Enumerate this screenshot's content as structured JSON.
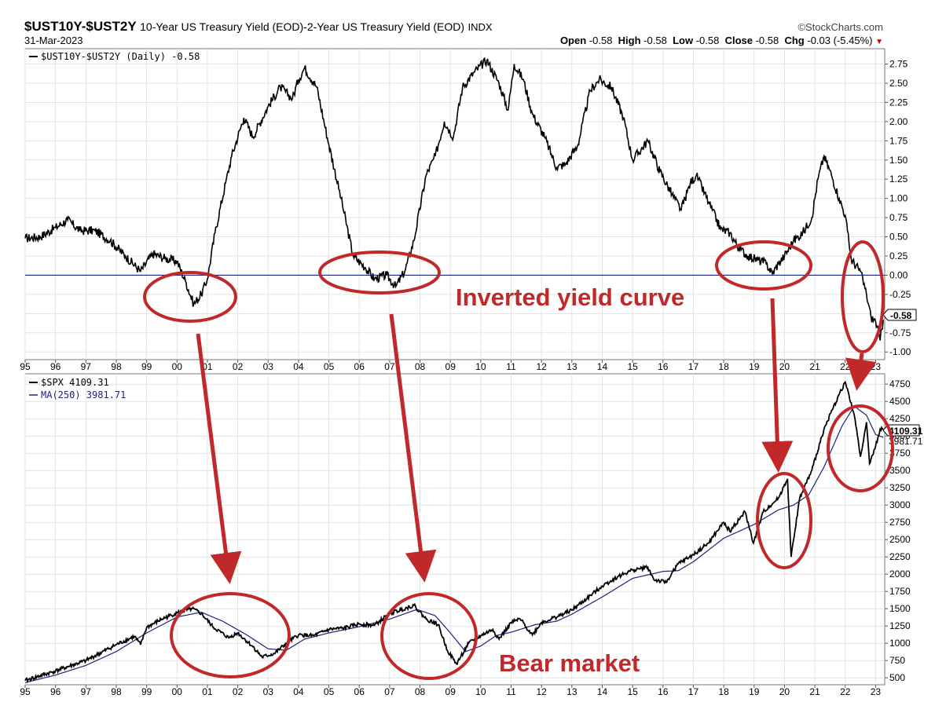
{
  "header": {
    "symbol": "$UST10Y-$UST2Y",
    "description": "10-Year US Treasury Yield (EOD)-2-Year US Treasury Yield (EOD)",
    "exchange": "INDX",
    "date": "31-Mar-2023",
    "source": "©StockCharts.com",
    "open_label": "Open",
    "open_value": "-0.58",
    "high_label": "High",
    "high_value": "-0.58",
    "low_label": "Low",
    "low_value": "-0.58",
    "close_label": "Close",
    "close_value": "-0.58",
    "chg_label": "Chg",
    "chg_value": "-0.03 (-5.45%)"
  },
  "annotations": {
    "inverted": "Inverted yield curve",
    "bear": "Bear market",
    "color": "#c0282a"
  },
  "chart_data": [
    {
      "type": "line",
      "title": "$UST10Y-$UST2Y",
      "legend": [
        "$UST10Y-$UST2Y (Daily) -0.58"
      ],
      "last_value_label": "-0.58",
      "x_ticks": [
        "95",
        "96",
        "97",
        "98",
        "99",
        "00",
        "01",
        "02",
        "03",
        "04",
        "05",
        "06",
        "07",
        "08",
        "09",
        "10",
        "11",
        "12",
        "13",
        "14",
        "15",
        "16",
        "17",
        "18",
        "19",
        "20",
        "21",
        "22",
        "23"
      ],
      "y_ticks": [
        "2.75",
        "2.50",
        "2.25",
        "2.00",
        "1.75",
        "1.50",
        "1.25",
        "1.00",
        "0.75",
        "0.50",
        "0.25",
        "0.00",
        "-0.25",
        "-0.50",
        "-0.75",
        "-1.00"
      ],
      "ylim": [
        -1.1,
        2.95
      ],
      "zero_line": true,
      "grid": true,
      "series": [
        {
          "name": "$UST10Y-$UST2Y (Daily)",
          "points": [
            [
              1995.0,
              0.48
            ],
            [
              1995.5,
              0.5
            ],
            [
              1996.0,
              0.62
            ],
            [
              1996.4,
              0.72
            ],
            [
              1996.8,
              0.58
            ],
            [
              1997.3,
              0.58
            ],
            [
              1997.8,
              0.45
            ],
            [
              1998.3,
              0.25
            ],
            [
              1998.8,
              0.05
            ],
            [
              1999.2,
              0.28
            ],
            [
              1999.6,
              0.22
            ],
            [
              2000.0,
              0.18
            ],
            [
              2000.3,
              -0.1
            ],
            [
              2000.55,
              -0.38
            ],
            [
              2000.8,
              -0.25
            ],
            [
              2001.0,
              -0.05
            ],
            [
              2001.25,
              0.55
            ],
            [
              2001.6,
              1.2
            ],
            [
              2001.8,
              1.55
            ],
            [
              2002.2,
              2.05
            ],
            [
              2002.5,
              1.8
            ],
            [
              2003.0,
              2.2
            ],
            [
              2003.4,
              2.45
            ],
            [
              2003.8,
              2.3
            ],
            [
              2004.0,
              2.55
            ],
            [
              2004.2,
              2.7
            ],
            [
              2004.6,
              2.45
            ],
            [
              2005.0,
              1.7
            ],
            [
              2005.4,
              1.0
            ],
            [
              2005.8,
              0.25
            ],
            [
              2006.2,
              0.1
            ],
            [
              2006.5,
              -0.05
            ],
            [
              2006.9,
              0.0
            ],
            [
              2007.2,
              -0.15
            ],
            [
              2007.5,
              0.05
            ],
            [
              2007.8,
              0.45
            ],
            [
              2008.2,
              1.3
            ],
            [
              2008.5,
              1.55
            ],
            [
              2008.8,
              2.0
            ],
            [
              2009.1,
              1.8
            ],
            [
              2009.4,
              2.45
            ],
            [
              2009.8,
              2.65
            ],
            [
              2010.2,
              2.8
            ],
            [
              2010.6,
              2.5
            ],
            [
              2010.9,
              2.15
            ],
            [
              2011.1,
              2.75
            ],
            [
              2011.4,
              2.55
            ],
            [
              2011.7,
              2.1
            ],
            [
              2012.1,
              1.8
            ],
            [
              2012.5,
              1.4
            ],
            [
              2012.8,
              1.45
            ],
            [
              2013.2,
              1.7
            ],
            [
              2013.6,
              2.4
            ],
            [
              2013.9,
              2.55
            ],
            [
              2014.3,
              2.45
            ],
            [
              2014.7,
              2.05
            ],
            [
              2015.0,
              1.5
            ],
            [
              2015.5,
              1.75
            ],
            [
              2015.9,
              1.35
            ],
            [
              2016.3,
              1.05
            ],
            [
              2016.6,
              0.85
            ],
            [
              2016.9,
              1.2
            ],
            [
              2017.1,
              1.3
            ],
            [
              2017.5,
              0.95
            ],
            [
              2017.9,
              0.6
            ],
            [
              2018.2,
              0.55
            ],
            [
              2018.5,
              0.35
            ],
            [
              2018.8,
              0.25
            ],
            [
              2019.1,
              0.2
            ],
            [
              2019.4,
              0.15
            ],
            [
              2019.6,
              0.02
            ],
            [
              2019.8,
              0.15
            ],
            [
              2020.0,
              0.25
            ],
            [
              2020.3,
              0.45
            ],
            [
              2020.6,
              0.55
            ],
            [
              2020.9,
              0.75
            ],
            [
              2021.1,
              1.25
            ],
            [
              2021.3,
              1.55
            ],
            [
              2021.55,
              1.3
            ],
            [
              2021.8,
              1.0
            ],
            [
              2022.0,
              0.78
            ],
            [
              2022.2,
              0.2
            ],
            [
              2022.5,
              0.05
            ],
            [
              2022.7,
              -0.25
            ],
            [
              2022.85,
              -0.55
            ],
            [
              2023.0,
              -0.6
            ],
            [
              2023.15,
              -0.85
            ],
            [
              2023.25,
              -0.58
            ]
          ]
        }
      ]
    },
    {
      "type": "line",
      "title": "$SPX",
      "legend": [
        "$SPX 4109.31",
        "MA(250) 3981.71"
      ],
      "last_value_labels": [
        "4109.31",
        "3981.71"
      ],
      "x_ticks": [
        "95",
        "96",
        "97",
        "98",
        "99",
        "00",
        "01",
        "02",
        "03",
        "04",
        "05",
        "06",
        "07",
        "08",
        "09",
        "10",
        "11",
        "12",
        "13",
        "14",
        "15",
        "16",
        "17",
        "18",
        "19",
        "20",
        "21",
        "22",
        "23"
      ],
      "y_ticks": [
        "4750",
        "4500",
        "4250",
        "4000",
        "3750",
        "3500",
        "3250",
        "3000",
        "2750",
        "2500",
        "2250",
        "2000",
        "1750",
        "1500",
        "1250",
        "1000",
        "750",
        "500"
      ],
      "ylim": [
        400,
        4900
      ],
      "grid": true,
      "series": [
        {
          "name": "$SPX",
          "points": [
            [
              1995.0,
              460
            ],
            [
              1996.0,
              600
            ],
            [
              1997.0,
              750
            ],
            [
              1998.0,
              980
            ],
            [
              1998.6,
              1100
            ],
            [
              1998.8,
              980
            ],
            [
              1999.0,
              1230
            ],
            [
              1999.5,
              1350
            ],
            [
              2000.0,
              1440
            ],
            [
              2000.5,
              1500
            ],
            [
              2000.8,
              1430
            ],
            [
              2001.2,
              1230
            ],
            [
              2001.7,
              1080
            ],
            [
              2002.0,
              1150
            ],
            [
              2002.5,
              950
            ],
            [
              2002.8,
              800
            ],
            [
              2003.2,
              850
            ],
            [
              2003.6,
              1000
            ],
            [
              2004.0,
              1120
            ],
            [
              2004.5,
              1110
            ],
            [
              2005.0,
              1200
            ],
            [
              2005.5,
              1220
            ],
            [
              2006.0,
              1280
            ],
            [
              2006.5,
              1260
            ],
            [
              2007.0,
              1430
            ],
            [
              2007.8,
              1550
            ],
            [
              2008.2,
              1350
            ],
            [
              2008.6,
              1270
            ],
            [
              2008.9,
              900
            ],
            [
              2009.2,
              700
            ],
            [
              2009.6,
              1000
            ],
            [
              2010.0,
              1110
            ],
            [
              2010.4,
              1200
            ],
            [
              2010.6,
              1060
            ],
            [
              2011.0,
              1300
            ],
            [
              2011.3,
              1350
            ],
            [
              2011.7,
              1120
            ],
            [
              2012.0,
              1300
            ],
            [
              2012.6,
              1400
            ],
            [
              2013.0,
              1480
            ],
            [
              2013.5,
              1650
            ],
            [
              2014.0,
              1830
            ],
            [
              2014.5,
              1960
            ],
            [
              2015.0,
              2060
            ],
            [
              2015.5,
              2100
            ],
            [
              2015.7,
              1920
            ],
            [
              2016.1,
              1880
            ],
            [
              2016.5,
              2150
            ],
            [
              2017.0,
              2280
            ],
            [
              2017.5,
              2450
            ],
            [
              2018.0,
              2750
            ],
            [
              2018.2,
              2620
            ],
            [
              2018.7,
              2900
            ],
            [
              2018.98,
              2450
            ],
            [
              2019.3,
              2900
            ],
            [
              2019.8,
              3100
            ],
            [
              2020.1,
              3380
            ],
            [
              2020.22,
              2250
            ],
            [
              2020.5,
              3100
            ],
            [
              2020.9,
              3500
            ],
            [
              2021.3,
              4100
            ],
            [
              2021.8,
              4600
            ],
            [
              2022.0,
              4780
            ],
            [
              2022.3,
              4300
            ],
            [
              2022.5,
              3700
            ],
            [
              2022.7,
              4200
            ],
            [
              2022.8,
              3600
            ],
            [
              2023.0,
              3850
            ],
            [
              2023.15,
              4100
            ],
            [
              2023.25,
              4109.31
            ]
          ]
        },
        {
          "name": "MA(250)",
          "points": [
            [
              1995.0,
              430
            ],
            [
              1996.0,
              540
            ],
            [
              1997.0,
              680
            ],
            [
              1998.0,
              880
            ],
            [
              1999.0,
              1150
            ],
            [
              2000.0,
              1380
            ],
            [
              2000.8,
              1450
            ],
            [
              2001.5,
              1320
            ],
            [
              2002.3,
              1120
            ],
            [
              2003.0,
              920
            ],
            [
              2003.6,
              900
            ],
            [
              2004.2,
              1060
            ],
            [
              2005.0,
              1150
            ],
            [
              2006.0,
              1240
            ],
            [
              2007.0,
              1350
            ],
            [
              2007.9,
              1490
            ],
            [
              2008.5,
              1400
            ],
            [
              2009.0,
              1150
            ],
            [
              2009.5,
              880
            ],
            [
              2010.0,
              960
            ],
            [
              2010.5,
              1110
            ],
            [
              2011.0,
              1160
            ],
            [
              2011.8,
              1270
            ],
            [
              2012.5,
              1320
            ],
            [
              2013.0,
              1420
            ],
            [
              2014.0,
              1670
            ],
            [
              2015.0,
              1940
            ],
            [
              2016.0,
              2040
            ],
            [
              2016.5,
              2050
            ],
            [
              2017.0,
              2180
            ],
            [
              2018.0,
              2520
            ],
            [
              2019.0,
              2720
            ],
            [
              2019.8,
              2930
            ],
            [
              2020.3,
              3000
            ],
            [
              2020.8,
              3150
            ],
            [
              2021.3,
              3550
            ],
            [
              2021.9,
              4150
            ],
            [
              2022.3,
              4430
            ],
            [
              2022.7,
              4300
            ],
            [
              2023.0,
              4020
            ],
            [
              2023.25,
              3981.71
            ]
          ]
        }
      ]
    }
  ]
}
